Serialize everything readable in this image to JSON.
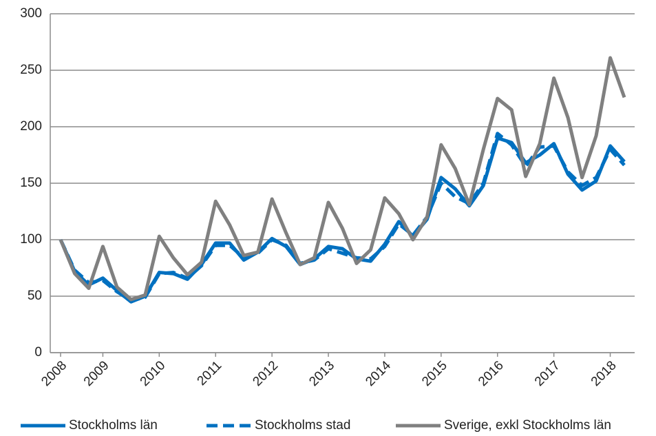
{
  "chart_data": {
    "type": "line",
    "categories": [
      "2008",
      null,
      null,
      "2009",
      null,
      null,
      null,
      "2010",
      null,
      null,
      null,
      "2011",
      null,
      null,
      null,
      "2012",
      null,
      null,
      null,
      "2013",
      null,
      null,
      null,
      "2014",
      null,
      null,
      null,
      "2015",
      null,
      null,
      null,
      "2016",
      null,
      null,
      null,
      "2017",
      null,
      null,
      null,
      "2018",
      null
    ],
    "series": [
      {
        "name": "Stockholms län",
        "color": "#0070c0",
        "dash": "solid",
        "values": [
          100,
          72,
          60,
          66,
          55,
          45,
          50,
          71,
          70,
          65,
          78,
          97,
          97,
          82,
          89,
          101,
          94,
          78,
          83,
          94,
          92,
          83,
          81,
          96,
          116,
          103,
          118,
          155,
          145,
          130,
          148,
          190,
          186,
          168,
          175,
          185,
          158,
          144,
          152,
          183,
          169
        ]
      },
      {
        "name": "Stockholms stad",
        "color": "#0070c0",
        "dash": "dashed",
        "values": [
          100,
          73,
          62,
          64,
          54,
          46,
          49,
          70,
          71,
          66,
          77,
          95,
          95,
          84,
          88,
          100,
          95,
          79,
          82,
          92,
          88,
          84,
          83,
          94,
          114,
          104,
          120,
          150,
          138,
          132,
          150,
          194,
          184,
          165,
          182,
          183,
          160,
          148,
          155,
          180,
          166
        ]
      },
      {
        "name": "Sverige, exkl Stockholms län",
        "color": "#808080",
        "dash": "solid",
        "values": [
          100,
          70,
          57,
          94,
          58,
          47,
          51,
          103,
          84,
          69,
          80,
          134,
          113,
          86,
          89,
          136,
          106,
          78,
          84,
          133,
          110,
          79,
          91,
          137,
          123,
          100,
          120,
          184,
          163,
          131,
          180,
          225,
          215,
          156,
          185,
          243,
          208,
          155,
          192,
          261,
          226
        ]
      }
    ],
    "ylim": [
      0,
      300
    ],
    "yticks": [
      0,
      50,
      100,
      150,
      200,
      250,
      300
    ],
    "grid": true,
    "legend": "bottom"
  }
}
